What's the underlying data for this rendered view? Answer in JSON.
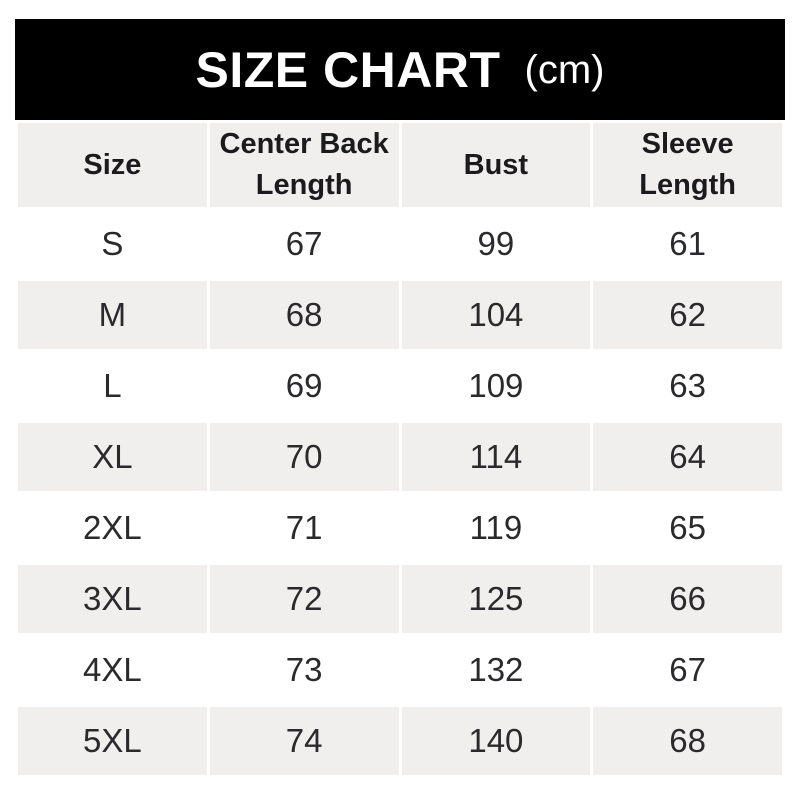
{
  "title": {
    "main": "SIZE CHART",
    "unit": "(cm)"
  },
  "chart_data": {
    "type": "table",
    "title": "SIZE CHART (cm)",
    "unit": "cm",
    "columns": [
      {
        "label": "Size",
        "lines": [
          "Size"
        ]
      },
      {
        "label": "Center Back Length",
        "lines": [
          "Center Back",
          "Length"
        ]
      },
      {
        "label": "Bust",
        "lines": [
          "Bust"
        ]
      },
      {
        "label": "Sleeve Length",
        "lines": [
          "Sleeve",
          "Length"
        ]
      }
    ],
    "rows": [
      [
        "S",
        "67",
        "99",
        "61"
      ],
      [
        "M",
        "68",
        "104",
        "62"
      ],
      [
        "L",
        "69",
        "109",
        "63"
      ],
      [
        "XL",
        "70",
        "114",
        "64"
      ],
      [
        "2XL",
        "71",
        "119",
        "65"
      ],
      [
        "3XL",
        "72",
        "125",
        "66"
      ],
      [
        "4XL",
        "73",
        "132",
        "67"
      ],
      [
        "5XL",
        "74",
        "140",
        "68"
      ]
    ]
  },
  "colors": {
    "title_bar_bg": "#000000",
    "title_text": "#ffffff",
    "stripe_bg": "#f1efee",
    "row_bg": "#ffffff",
    "text": "#2a2a2c",
    "header_text": "#1b1b1d"
  }
}
